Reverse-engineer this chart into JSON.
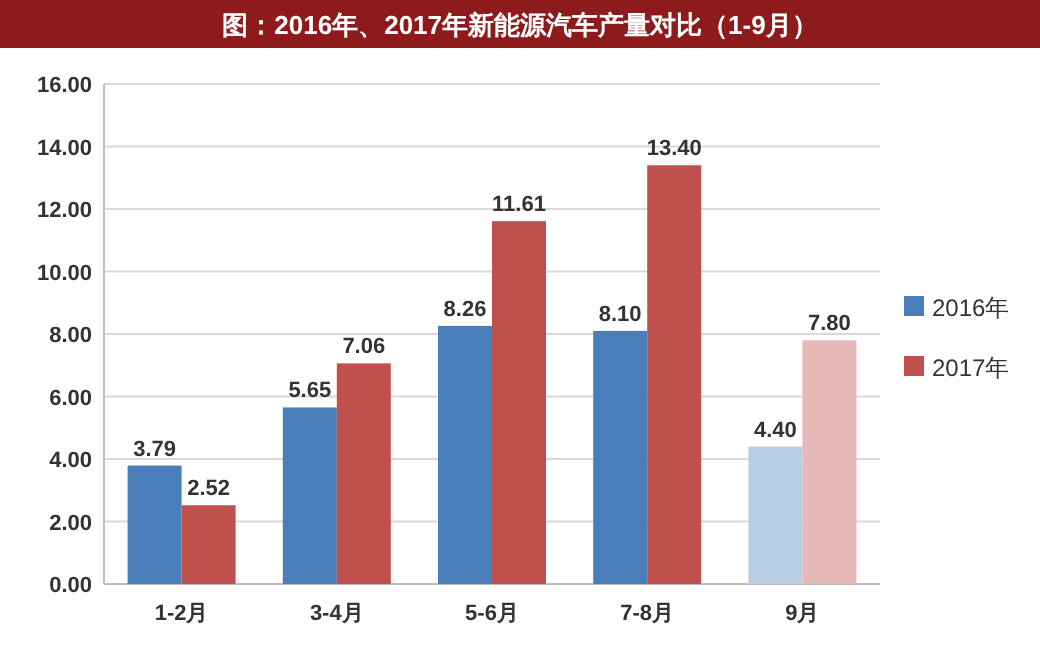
{
  "chart_data": {
    "type": "bar",
    "title": "图：2016年、2017年新能源汽车产量对比（1-9月）",
    "categories": [
      "1-2月",
      "3-4月",
      "5-6月",
      "7-8月",
      "9月"
    ],
    "series": [
      {
        "name": "2016年",
        "color": "#4a7ebb",
        "colors": [
          "#4a7ebb",
          "#4a7ebb",
          "#4a7ebb",
          "#4a7ebb",
          "#b9cde5"
        ],
        "values": [
          3.79,
          5.65,
          8.26,
          8.1,
          4.4
        ],
        "value_labels": [
          "3.79",
          "5.65",
          "8.26",
          "8.10",
          "4.40"
        ]
      },
      {
        "name": "2017年",
        "color": "#c0504d",
        "colors": [
          "#c0504d",
          "#c0504d",
          "#c0504d",
          "#c0504d",
          "#e6b9b8"
        ],
        "values": [
          2.52,
          7.06,
          11.61,
          13.4,
          7.8
        ],
        "value_labels": [
          "2.52",
          "7.06",
          "11.61",
          "13.40",
          "7.80"
        ]
      }
    ],
    "ylim": [
      0,
      16
    ],
    "yticks": [
      {
        "value": 0,
        "label": "0.00"
      },
      {
        "value": 2,
        "label": "2.00"
      },
      {
        "value": 4,
        "label": "4.00"
      },
      {
        "value": 6,
        "label": "6.00"
      },
      {
        "value": 8,
        "label": "8.00"
      },
      {
        "value": 10,
        "label": "10.00"
      },
      {
        "value": 12,
        "label": "12.00"
      },
      {
        "value": 14,
        "label": "14.00"
      },
      {
        "value": 16,
        "label": "16.00"
      }
    ],
    "grid": "y",
    "legend": "right"
  }
}
